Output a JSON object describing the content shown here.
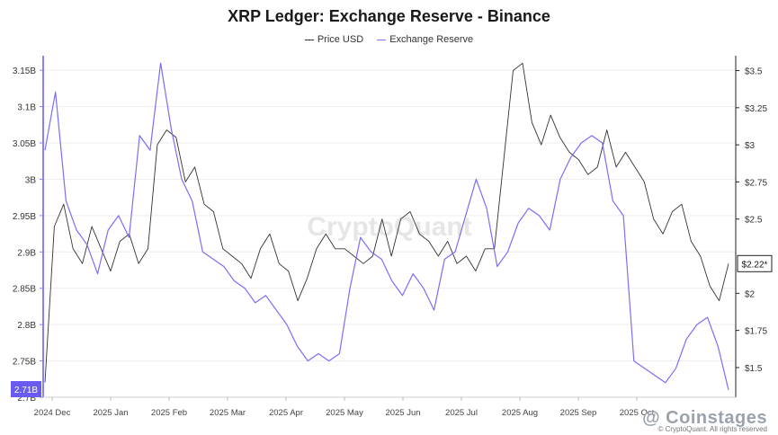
{
  "chart_data": {
    "type": "line",
    "title": "XRP Ledger: Exchange Reserve - Binance",
    "watermark": "CryptoQuant",
    "xlabel": "",
    "x_tick_labels": [
      "2024 Dec",
      "2025 Jan",
      "2025 Feb",
      "2025 Mar",
      "2025 Apr",
      "2025 May",
      "2025 Jun",
      "2025 Jul",
      "2025 Aug",
      "2025 Sep",
      "2025 Oct"
    ],
    "x_range_index": [
      0,
      43
    ],
    "left_axis": {
      "ylabel": "Exchange Reserve",
      "ylim": [
        2.7,
        3.17
      ],
      "ticks": [
        {
          "value": 2.7,
          "label": "2.7B"
        },
        {
          "value": 2.75,
          "label": "2.75B"
        },
        {
          "value": 2.8,
          "label": "2.8B"
        },
        {
          "value": 2.85,
          "label": "2.85B"
        },
        {
          "value": 2.9,
          "label": "2.9B"
        },
        {
          "value": 2.95,
          "label": "2.95B"
        },
        {
          "value": 3.0,
          "label": "3B"
        },
        {
          "value": 3.05,
          "label": "3.05B"
        },
        {
          "value": 3.1,
          "label": "3.1B"
        },
        {
          "value": 3.15,
          "label": "3.15B"
        }
      ],
      "current_label": "2.71B"
    },
    "right_axis": {
      "ylabel": "Price USD",
      "ylim": [
        1.3,
        3.6
      ],
      "ticks": [
        {
          "value": 1.5,
          "label": "$1.5"
        },
        {
          "value": 1.75,
          "label": "$1.75"
        },
        {
          "value": 2.0,
          "label": "$2"
        },
        {
          "value": 2.5,
          "label": "$2.5"
        },
        {
          "value": 2.75,
          "label": "$2.75"
        },
        {
          "value": 3.0,
          "label": "$3"
        },
        {
          "value": 3.25,
          "label": "$3.25"
        },
        {
          "value": 3.5,
          "label": "$3.5"
        }
      ],
      "current_label": "$2.22*"
    },
    "series": [
      {
        "name": "Price USD",
        "color": "#333333",
        "axis": "right",
        "values": [
          1.4,
          2.45,
          2.6,
          2.3,
          2.2,
          2.45,
          2.3,
          2.15,
          2.35,
          2.4,
          2.2,
          2.3,
          3.0,
          3.1,
          3.05,
          2.75,
          2.85,
          2.6,
          2.55,
          2.3,
          2.25,
          2.2,
          2.1,
          2.3,
          2.4,
          2.2,
          2.15,
          1.95,
          2.1,
          2.3,
          2.4,
          2.3,
          2.3,
          2.25,
          2.2,
          2.25,
          2.5,
          2.25,
          2.5,
          2.55,
          2.4,
          2.35,
          2.25,
          2.35,
          2.2,
          2.25,
          2.15,
          2.3,
          2.3,
          2.9,
          3.5,
          3.55,
          3.15,
          3.0,
          3.2,
          3.05,
          2.95,
          2.9,
          2.8,
          2.85,
          3.1,
          2.85,
          2.95,
          2.85,
          2.75,
          2.5,
          2.4,
          2.55,
          2.6,
          2.35,
          2.25,
          2.05,
          1.95,
          2.2
        ]
      },
      {
        "name": "Exchange Reserve",
        "color": "#7b6ef6",
        "axis": "left",
        "values": [
          3.04,
          3.12,
          2.97,
          2.93,
          2.91,
          2.87,
          2.93,
          2.95,
          2.92,
          3.06,
          3.04,
          3.16,
          3.07,
          3.0,
          2.97,
          2.9,
          2.89,
          2.88,
          2.86,
          2.85,
          2.83,
          2.84,
          2.82,
          2.8,
          2.77,
          2.75,
          2.76,
          2.75,
          2.76,
          2.85,
          2.92,
          2.9,
          2.89,
          2.86,
          2.84,
          2.87,
          2.85,
          2.82,
          2.89,
          2.9,
          2.95,
          3.0,
          2.96,
          2.88,
          2.9,
          2.94,
          2.96,
          2.95,
          2.93,
          3.0,
          3.03,
          3.05,
          3.06,
          3.05,
          2.97,
          2.95,
          2.75,
          2.74,
          2.73,
          2.72,
          2.74,
          2.78,
          2.8,
          2.81,
          2.77,
          2.71
        ]
      }
    ]
  },
  "footer": {
    "brand": "@ Coinstages",
    "copyright": "© CryptoQuant. All rights reserved"
  }
}
